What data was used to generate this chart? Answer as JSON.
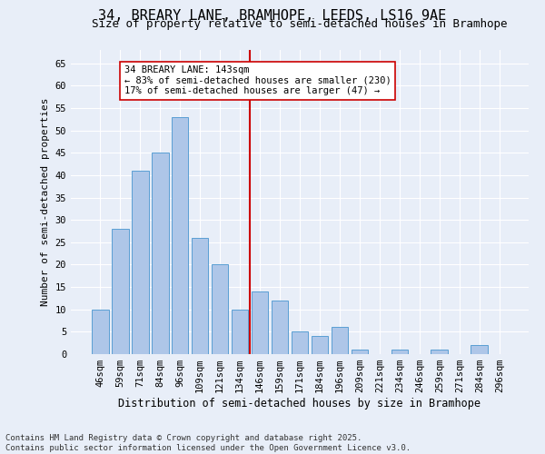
{
  "title1": "34, BREARY LANE, BRAMHOPE, LEEDS, LS16 9AE",
  "title2": "Size of property relative to semi-detached houses in Bramhope",
  "xlabel": "Distribution of semi-detached houses by size in Bramhope",
  "ylabel": "Number of semi-detached properties",
  "categories": [
    "46sqm",
    "59sqm",
    "71sqm",
    "84sqm",
    "96sqm",
    "109sqm",
    "121sqm",
    "134sqm",
    "146sqm",
    "159sqm",
    "171sqm",
    "184sqm",
    "196sqm",
    "209sqm",
    "221sqm",
    "234sqm",
    "246sqm",
    "259sqm",
    "271sqm",
    "284sqm",
    "296sqm"
  ],
  "values": [
    10,
    28,
    41,
    45,
    53,
    26,
    20,
    10,
    14,
    12,
    5,
    4,
    6,
    1,
    0,
    1,
    0,
    1,
    0,
    2,
    0
  ],
  "bar_color": "#aec6e8",
  "bar_edge_color": "#5a9fd4",
  "vline_x_idx": 8,
  "vline_color": "#cc0000",
  "annotation_text": "34 BREARY LANE: 143sqm\n← 83% of semi-detached houses are smaller (230)\n17% of semi-detached houses are larger (47) →",
  "annotation_box_color": "#ffffff",
  "annotation_box_edge": "#cc0000",
  "ylim": [
    0,
    68
  ],
  "yticks": [
    0,
    5,
    10,
    15,
    20,
    25,
    30,
    35,
    40,
    45,
    50,
    55,
    60,
    65
  ],
  "background_color": "#e8eef8",
  "grid_color": "#ffffff",
  "footnote": "Contains HM Land Registry data © Crown copyright and database right 2025.\nContains public sector information licensed under the Open Government Licence v3.0.",
  "title1_fontsize": 11,
  "title2_fontsize": 9,
  "xlabel_fontsize": 8.5,
  "ylabel_fontsize": 8,
  "tick_fontsize": 7.5,
  "annotation_fontsize": 7.5,
  "footnote_fontsize": 6.5
}
